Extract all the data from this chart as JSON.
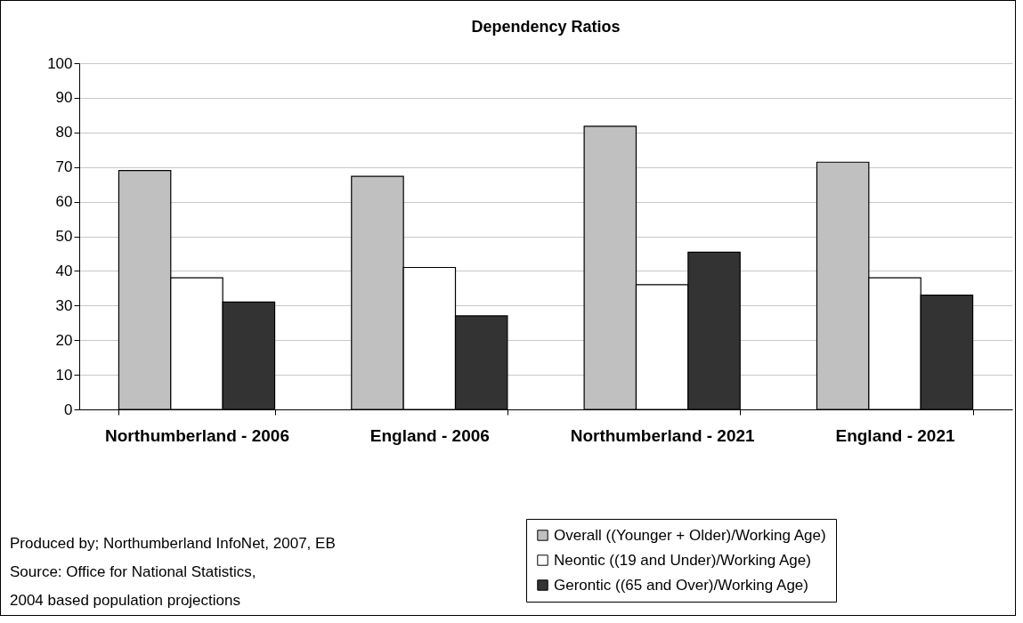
{
  "chart_data": {
    "type": "bar",
    "title": "Dependency Ratios",
    "categories": [
      "Northumberland - 2006",
      "England - 2006",
      "Northumberland - 2021",
      "England - 2021"
    ],
    "series": [
      {
        "name": "Overall ((Younger + Older)/Working Age)",
        "color": "#c0c0c0",
        "values": [
          69,
          67.3,
          81.8,
          71.4
        ]
      },
      {
        "name": "Neontic ((19 and Under)/Working Age)",
        "color": "#ffffff",
        "values": [
          38,
          41,
          36,
          38
        ]
      },
      {
        "name": "Gerontic ((65 and Over)/Working Age)",
        "color": "#333333",
        "values": [
          31,
          27,
          45.4,
          33
        ]
      }
    ],
    "ylim": [
      0,
      100
    ],
    "yticks": [
      0,
      10,
      20,
      30,
      40,
      50,
      60,
      70,
      80,
      90,
      100
    ],
    "grid": "y",
    "legend": "bottom right",
    "annotations": [
      "Produced by; Northumberland InfoNet, 2007, EB",
      "Source: Office for National Statistics,",
      "2004 based population projections"
    ]
  }
}
